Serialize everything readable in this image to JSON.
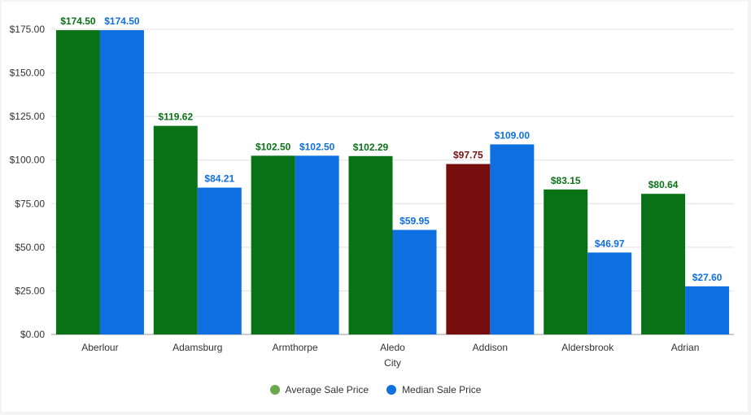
{
  "chart_data": {
    "type": "bar",
    "categories": [
      "Aberlour",
      "Adamsburg",
      "Armthorpe",
      "Aledo",
      "Addison",
      "Aldersbrook",
      "Adrian"
    ],
    "series": [
      {
        "name": "Average Sale Price",
        "values": [
          174.5,
          119.62,
          102.5,
          102.29,
          97.75,
          83.15,
          80.64
        ],
        "color": "#0a7216",
        "labels": [
          "$174.50",
          "$119.62",
          "$102.50",
          "$102.29",
          "$97.75",
          "$83.15",
          "$80.64"
        ],
        "highlight": {
          "index": 4,
          "color": "#760e0e"
        }
      },
      {
        "name": "Median Sale Price",
        "values": [
          174.5,
          84.21,
          102.5,
          59.95,
          109.0,
          46.97,
          27.6
        ],
        "color": "#0e6fe0",
        "labels": [
          "$174.50",
          "$84.21",
          "$102.50",
          "$59.95",
          "$109.00",
          "$46.97",
          "$27.60"
        ]
      }
    ],
    "xlabel": "City",
    "ylabel": "",
    "ylim": [
      0,
      175
    ],
    "yticks": [
      "$0.00",
      "$25.00",
      "$50.00",
      "$75.00",
      "$100.00",
      "$125.00",
      "$150.00",
      "$175.00"
    ],
    "grid": true,
    "legend_position": "bottom",
    "legend_colors": [
      "#6aa84f",
      "#0e6fe0"
    ]
  }
}
